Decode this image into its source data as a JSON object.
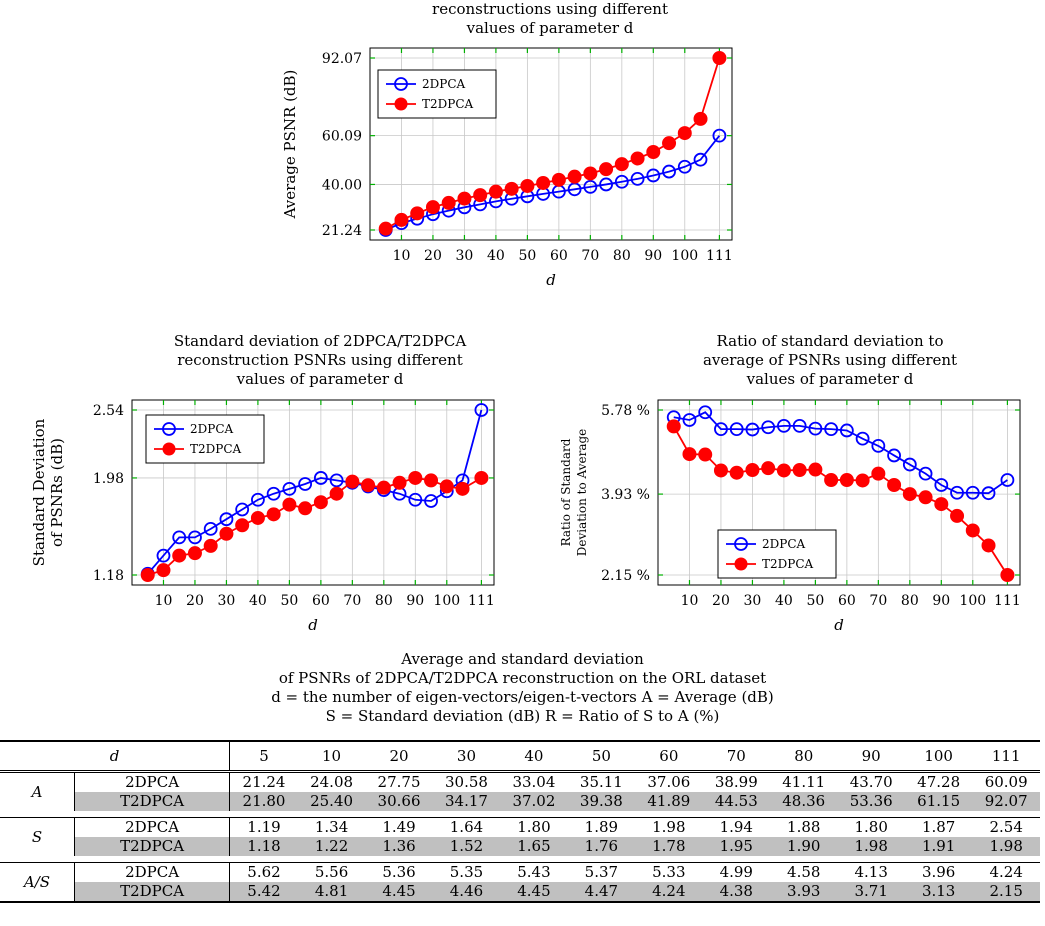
{
  "charts": [
    {
      "title_lines": [
        "reconstructions using different",
        "values of parameter d"
      ],
      "ylabel": "Average PSNR (dB)",
      "xlabel": "d",
      "yticks": [
        "21.24",
        "40.00",
        "60.09",
        "92.07"
      ]
    },
    {
      "title_lines": [
        "Standard deviation of 2DPCA/T2DPCA",
        "reconstruction PSNRs using different",
        "values of parameter d"
      ],
      "ylabel_lines": [
        "Standard Deviation",
        "of PSNRs (dB)"
      ],
      "xlabel": "d",
      "yticks": [
        "1.18",
        "1.98",
        "2.54"
      ]
    },
    {
      "title_lines": [
        "Ratio of standard deviation to",
        "average of PSNRs using different",
        "values of parameter d"
      ],
      "ylabel_lines": [
        "Ratio of Standard",
        "Deviation to Average"
      ],
      "xlabel": "d",
      "yticks": [
        "2.15 %",
        "3.93 %",
        "5.78 %"
      ]
    }
  ],
  "legend": {
    "series1": "2DPCA",
    "series2": "T2DPCA"
  },
  "colors": {
    "series1": "#0000ff",
    "series2": "#ff0000",
    "grid": "#c8c8c8",
    "ticks": "#00b000"
  },
  "xticks": [
    "10",
    "20",
    "30",
    "40",
    "50",
    "60",
    "70",
    "80",
    "90",
    "100",
    "111"
  ],
  "chart_data": [
    {
      "type": "line",
      "x": [
        5,
        10,
        15,
        20,
        25,
        30,
        35,
        40,
        45,
        50,
        55,
        60,
        65,
        70,
        75,
        80,
        85,
        90,
        95,
        100,
        105,
        111
      ],
      "ylim": [
        21.24,
        92.07
      ],
      "series": [
        {
          "name": "2DPCA",
          "values": [
            21.24,
            24.08,
            25.9,
            27.75,
            29.2,
            30.58,
            31.8,
            33.04,
            34.1,
            35.11,
            36.1,
            37.06,
            38.0,
            38.99,
            40.0,
            41.11,
            42.3,
            43.7,
            45.3,
            47.28,
            50.2,
            60.09
          ]
        },
        {
          "name": "T2DPCA",
          "values": [
            21.8,
            25.4,
            28.1,
            30.66,
            32.4,
            34.17,
            35.6,
            37.02,
            38.2,
            39.38,
            40.6,
            41.89,
            43.2,
            44.53,
            46.3,
            48.36,
            50.7,
            53.36,
            57.0,
            61.15,
            67.0,
            92.07
          ]
        }
      ]
    },
    {
      "type": "line",
      "x": [
        5,
        10,
        15,
        20,
        25,
        30,
        35,
        40,
        45,
        50,
        55,
        60,
        65,
        70,
        75,
        80,
        85,
        90,
        95,
        100,
        105,
        111
      ],
      "ylim": [
        1.18,
        2.54
      ],
      "series": [
        {
          "name": "2DPCA",
          "values": [
            1.19,
            1.34,
            1.49,
            1.49,
            1.56,
            1.64,
            1.72,
            1.8,
            1.85,
            1.89,
            1.93,
            1.98,
            1.96,
            1.94,
            1.91,
            1.88,
            1.85,
            1.8,
            1.79,
            1.87,
            1.96,
            2.54
          ]
        },
        {
          "name": "T2DPCA",
          "values": [
            1.18,
            1.22,
            1.34,
            1.36,
            1.42,
            1.52,
            1.59,
            1.65,
            1.68,
            1.76,
            1.73,
            1.78,
            1.85,
            1.95,
            1.92,
            1.9,
            1.94,
            1.98,
            1.96,
            1.91,
            1.89,
            1.98
          ]
        }
      ]
    },
    {
      "type": "line",
      "x": [
        5,
        10,
        15,
        20,
        25,
        30,
        35,
        40,
        45,
        50,
        55,
        60,
        65,
        70,
        75,
        80,
        85,
        90,
        95,
        100,
        105,
        111
      ],
      "ylim": [
        2.15,
        5.78
      ],
      "series": [
        {
          "name": "2DPCA",
          "values": [
            5.62,
            5.56,
            5.73,
            5.36,
            5.36,
            5.35,
            5.4,
            5.43,
            5.43,
            5.37,
            5.36,
            5.33,
            5.15,
            4.99,
            4.78,
            4.58,
            4.38,
            4.13,
            3.96,
            3.96,
            3.95,
            4.24
          ]
        },
        {
          "name": "T2DPCA",
          "values": [
            5.42,
            4.81,
            4.8,
            4.45,
            4.4,
            4.46,
            4.5,
            4.45,
            4.46,
            4.47,
            4.24,
            4.24,
            4.23,
            4.38,
            4.13,
            3.93,
            3.86,
            3.71,
            3.45,
            3.13,
            2.8,
            2.15
          ]
        }
      ]
    }
  ],
  "table": {
    "caption_lines": [
      "Average and standard deviation",
      "of PSNRs of 2DPCA/T2DPCA reconstruction on the ORL dataset",
      "d = the number of eigen-vectors/eigen-t-vectors   A = Average (dB)",
      "S = Standard deviation (dB)   R = Ratio of S to A (%)"
    ],
    "header": [
      "d",
      "5",
      "10",
      "20",
      "30",
      "40",
      "50",
      "60",
      "70",
      "80",
      "90",
      "100",
      "111"
    ],
    "groups": [
      {
        "label": "A",
        "rows": [
          {
            "name": "2DPCA",
            "values": [
              "21.24",
              "24.08",
              "27.75",
              "30.58",
              "33.04",
              "35.11",
              "37.06",
              "38.99",
              "41.11",
              "43.70",
              "47.28",
              "60.09"
            ]
          },
          {
            "name": "T2DPCA",
            "values": [
              "21.80",
              "25.40",
              "30.66",
              "34.17",
              "37.02",
              "39.38",
              "41.89",
              "44.53",
              "48.36",
              "53.36",
              "61.15",
              "92.07"
            ]
          }
        ]
      },
      {
        "label": "S",
        "rows": [
          {
            "name": "2DPCA",
            "values": [
              "1.19",
              "1.34",
              "1.49",
              "1.64",
              "1.80",
              "1.89",
              "1.98",
              "1.94",
              "1.88",
              "1.80",
              "1.87",
              "2.54"
            ]
          },
          {
            "name": "T2DPCA",
            "values": [
              "1.18",
              "1.22",
              "1.36",
              "1.52",
              "1.65",
              "1.76",
              "1.78",
              "1.95",
              "1.90",
              "1.98",
              "1.91",
              "1.98"
            ]
          }
        ]
      },
      {
        "label": "A/S",
        "rows": [
          {
            "name": "2DPCA",
            "values": [
              "5.62",
              "5.56",
              "5.36",
              "5.35",
              "5.43",
              "5.37",
              "5.33",
              "4.99",
              "4.58",
              "4.13",
              "3.96",
              "4.24"
            ]
          },
          {
            "name": "T2DPCA",
            "values": [
              "5.42",
              "4.81",
              "4.45",
              "4.46",
              "4.45",
              "4.47",
              "4.24",
              "4.38",
              "3.93",
              "3.71",
              "3.13",
              "2.15"
            ]
          }
        ]
      }
    ]
  }
}
